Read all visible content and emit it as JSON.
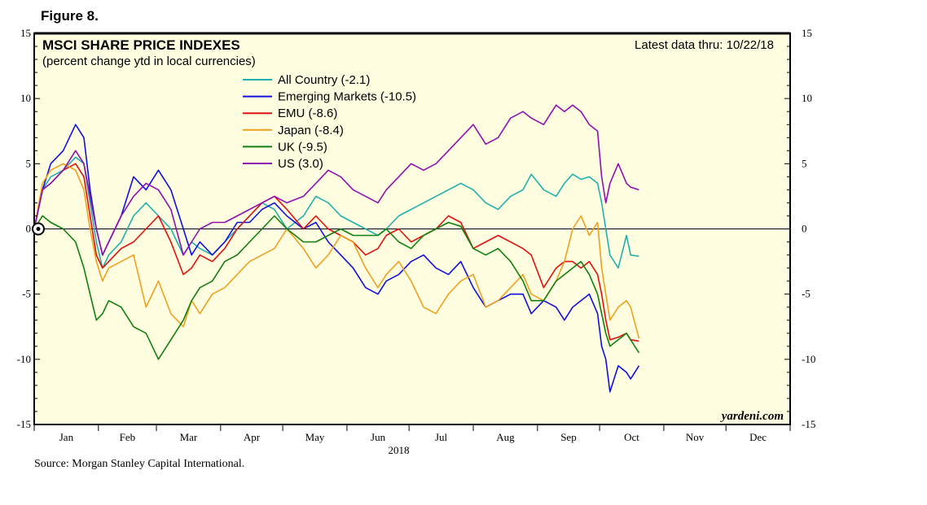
{
  "figure_label": "Figure 8.",
  "source": "Source: Morgan Stanley Capital International.",
  "chart_data": {
    "type": "line",
    "title": "MSCI SHARE PRICE INDEXES",
    "subtitle": "(percent change ytd in local currencies)",
    "latest_note": "Latest data thru: 10/22/18",
    "credit": "yardeni.com",
    "year_label": "2018",
    "ylim": [
      -15,
      15
    ],
    "yticks": [
      -15,
      -10,
      -5,
      0,
      5,
      10,
      15
    ],
    "ytick_labels": [
      "-15",
      "-10",
      "-5",
      "0",
      "5",
      "10",
      "15"
    ],
    "xlim_days": [
      0,
      365
    ],
    "months": [
      "Jan",
      "Feb",
      "Mar",
      "Apr",
      "May",
      "Jun",
      "Jul",
      "Aug",
      "Sep",
      "Oct",
      "Nov",
      "Dec"
    ],
    "month_start_days": [
      0,
      31,
      59,
      90,
      120,
      151,
      181,
      212,
      243,
      273,
      304,
      334
    ],
    "x_unit": "day of year 2018",
    "colors": {
      "background": "#FFFEE0",
      "All Country": "#20B0B0",
      "Emerging Markets": "#1010E0",
      "EMU": "#E01010",
      "Japan": "#F0A020",
      "UK": "#108010",
      "US": "#9010B0"
    },
    "series": [
      {
        "name": "All Country",
        "legend": "All Country (-2.1)",
        "x": [
          0,
          4,
          8,
          14,
          20,
          24,
          27,
          30,
          33,
          36,
          42,
          48,
          54,
          60,
          66,
          72,
          76,
          80,
          86,
          92,
          98,
          104,
          110,
          116,
          122,
          130,
          136,
          142,
          148,
          154,
          160,
          166,
          170,
          176,
          182,
          188,
          194,
          200,
          206,
          212,
          218,
          224,
          230,
          236,
          240,
          246,
          252,
          256,
          260,
          264,
          268,
          272,
          274,
          276,
          278,
          282,
          286,
          288,
          292
        ],
        "values": [
          0,
          3.0,
          4.0,
          4.5,
          5.5,
          5.0,
          2.0,
          -1.0,
          -3.0,
          -2.0,
          -1.0,
          1.0,
          2.0,
          1.0,
          0,
          -2.0,
          -1.0,
          -1.5,
          -2.0,
          -1.0,
          0,
          1.0,
          2.0,
          1.5,
          0,
          1.0,
          2.5,
          2.0,
          1.0,
          0.5,
          0,
          -0.5,
          0,
          1.0,
          1.5,
          2.0,
          2.5,
          3.0,
          3.5,
          3.0,
          2.0,
          1.5,
          2.5,
          3.0,
          4.2,
          3.0,
          2.5,
          3.5,
          4.2,
          3.8,
          4.0,
          3.5,
          2.0,
          0,
          -2.0,
          -3.0,
          -0.5,
          -2.0,
          -2.1
        ]
      },
      {
        "name": "Emerging Markets",
        "legend": "Emerging Markets (-10.5)",
        "x": [
          0,
          4,
          8,
          14,
          20,
          24,
          27,
          30,
          33,
          36,
          42,
          48,
          54,
          60,
          66,
          72,
          76,
          80,
          86,
          92,
          98,
          104,
          110,
          116,
          122,
          130,
          136,
          142,
          148,
          154,
          160,
          166,
          170,
          176,
          182,
          188,
          194,
          200,
          206,
          212,
          218,
          224,
          230,
          236,
          240,
          246,
          252,
          256,
          260,
          264,
          268,
          272,
          274,
          276,
          278,
          282,
          286,
          288,
          292
        ],
        "values": [
          0,
          3.0,
          5.0,
          6.0,
          8.0,
          7.0,
          3.0,
          0,
          -2.0,
          -1.0,
          1.0,
          4.0,
          3.0,
          4.5,
          3.0,
          0,
          -2.0,
          -1.0,
          -2.0,
          -1.0,
          0.5,
          0.5,
          1.5,
          2.0,
          1.0,
          0,
          0.5,
          -1.0,
          -2.0,
          -3.0,
          -4.5,
          -5.0,
          -4.0,
          -3.5,
          -2.5,
          -2.0,
          -3.0,
          -3.5,
          -2.5,
          -4.5,
          -6.0,
          -5.5,
          -5.0,
          -5.0,
          -6.5,
          -5.5,
          -6.0,
          -7.0,
          -6.0,
          -5.5,
          -5.0,
          -6.5,
          -9.0,
          -10.0,
          -12.5,
          -10.5,
          -11.0,
          -11.5,
          -10.5
        ]
      },
      {
        "name": "EMU",
        "legend": "EMU (-8.6)",
        "x": [
          0,
          4,
          8,
          14,
          20,
          24,
          27,
          30,
          33,
          36,
          42,
          48,
          54,
          60,
          66,
          72,
          76,
          80,
          86,
          92,
          98,
          104,
          110,
          116,
          122,
          130,
          136,
          142,
          148,
          154,
          160,
          166,
          170,
          176,
          182,
          188,
          194,
          200,
          206,
          212,
          218,
          224,
          230,
          236,
          240,
          246,
          252,
          256,
          260,
          264,
          268,
          272,
          274,
          276,
          278,
          282,
          286,
          288,
          292
        ],
        "values": [
          0,
          3.0,
          3.5,
          4.5,
          5.0,
          4.0,
          1.0,
          -2.0,
          -3.0,
          -2.5,
          -1.5,
          -1.0,
          0,
          1.0,
          -1.0,
          -3.5,
          -3.0,
          -2.0,
          -2.5,
          -1.5,
          0,
          1.0,
          2.0,
          2.5,
          1.5,
          0,
          1.0,
          0,
          -0.5,
          -1.0,
          -2.0,
          -1.5,
          -0.5,
          0,
          -1.0,
          -0.5,
          0,
          1.0,
          0.5,
          -1.5,
          -1.0,
          -0.5,
          -1.0,
          -1.5,
          -2.0,
          -4.5,
          -3.0,
          -2.5,
          -2.5,
          -3.0,
          -2.5,
          -3.5,
          -5.0,
          -7.0,
          -8.5,
          -8.3,
          -8.0,
          -8.5,
          -8.6
        ]
      },
      {
        "name": "Japan",
        "legend": "Japan (-8.4)",
        "x": [
          0,
          4,
          8,
          14,
          20,
          24,
          27,
          30,
          33,
          36,
          42,
          48,
          54,
          60,
          66,
          72,
          76,
          80,
          86,
          92,
          98,
          104,
          110,
          116,
          122,
          130,
          136,
          142,
          148,
          154,
          160,
          166,
          170,
          176,
          182,
          188,
          194,
          200,
          206,
          212,
          218,
          224,
          230,
          236,
          240,
          246,
          252,
          256,
          260,
          264,
          268,
          272,
          274,
          276,
          278,
          282,
          286,
          288,
          292
        ],
        "values": [
          0,
          3.5,
          4.5,
          5.0,
          4.5,
          3.0,
          0,
          -2.5,
          -4.0,
          -3.0,
          -2.5,
          -2.0,
          -6.0,
          -4.0,
          -6.5,
          -7.5,
          -5.5,
          -6.5,
          -5.0,
          -4.5,
          -3.5,
          -2.5,
          -2.0,
          -1.5,
          0,
          -1.5,
          -3.0,
          -2.0,
          -0.5,
          -1.0,
          -3.0,
          -4.5,
          -3.5,
          -2.5,
          -4.0,
          -6.0,
          -6.5,
          -5.0,
          -4.0,
          -3.5,
          -6.0,
          -5.5,
          -4.5,
          -3.5,
          -5.0,
          -5.5,
          -4.0,
          -2.5,
          0,
          1.0,
          -0.5,
          0.5,
          -3.0,
          -5.0,
          -7.0,
          -6.0,
          -5.5,
          -6.0,
          -8.4
        ]
      },
      {
        "name": "UK",
        "legend": "UK (-9.5)",
        "x": [
          0,
          4,
          8,
          14,
          20,
          24,
          27,
          30,
          33,
          36,
          42,
          48,
          54,
          60,
          66,
          72,
          76,
          80,
          86,
          92,
          98,
          104,
          110,
          116,
          122,
          130,
          136,
          142,
          148,
          154,
          160,
          166,
          170,
          176,
          182,
          188,
          194,
          200,
          206,
          212,
          218,
          224,
          230,
          236,
          240,
          246,
          252,
          256,
          260,
          264,
          268,
          272,
          274,
          276,
          278,
          282,
          286,
          288,
          292
        ],
        "values": [
          0,
          1.0,
          0.5,
          0,
          -1.0,
          -3.0,
          -5.0,
          -7.0,
          -6.5,
          -5.5,
          -6.0,
          -7.5,
          -8.0,
          -10.0,
          -8.5,
          -7.0,
          -5.5,
          -4.5,
          -4.0,
          -2.5,
          -2.0,
          -1.0,
          0,
          1.0,
          0,
          -1.0,
          -1.0,
          -0.5,
          0,
          -0.5,
          -0.5,
          -0.5,
          0,
          -1.0,
          -1.5,
          -0.5,
          0,
          0.5,
          0.2,
          -1.5,
          -2.0,
          -1.5,
          -2.5,
          -4.0,
          -5.5,
          -5.5,
          -4.0,
          -3.5,
          -3.0,
          -2.5,
          -3.5,
          -5.0,
          -6.5,
          -8.0,
          -9.0,
          -8.5,
          -8.0,
          -8.5,
          -9.5
        ]
      },
      {
        "name": "US",
        "legend": "US (3.0)",
        "x": [
          0,
          4,
          8,
          14,
          20,
          24,
          27,
          30,
          33,
          36,
          42,
          48,
          54,
          60,
          66,
          72,
          76,
          80,
          86,
          92,
          98,
          104,
          110,
          116,
          122,
          130,
          136,
          142,
          148,
          154,
          160,
          166,
          170,
          176,
          182,
          188,
          194,
          200,
          206,
          212,
          218,
          224,
          230,
          236,
          240,
          246,
          252,
          256,
          260,
          264,
          268,
          272,
          274,
          276,
          278,
          282,
          286,
          288,
          292
        ],
        "values": [
          0,
          3.0,
          3.5,
          4.5,
          6.0,
          5.0,
          2.5,
          0,
          -2.0,
          -1.0,
          1.0,
          2.5,
          3.5,
          3.0,
          1.5,
          -2.0,
          -1.0,
          0,
          0.5,
          0.5,
          1.0,
          1.5,
          2.0,
          2.5,
          2.0,
          2.5,
          3.5,
          4.5,
          4.0,
          3.0,
          2.5,
          2.0,
          3.0,
          4.0,
          5.0,
          4.5,
          5.0,
          6.0,
          7.0,
          8.0,
          6.5,
          7.0,
          8.5,
          9.0,
          8.5,
          8.0,
          9.5,
          9.0,
          9.5,
          9.0,
          8.0,
          7.5,
          4.0,
          2.0,
          3.5,
          5.0,
          3.5,
          3.2,
          3.0
        ]
      }
    ]
  }
}
